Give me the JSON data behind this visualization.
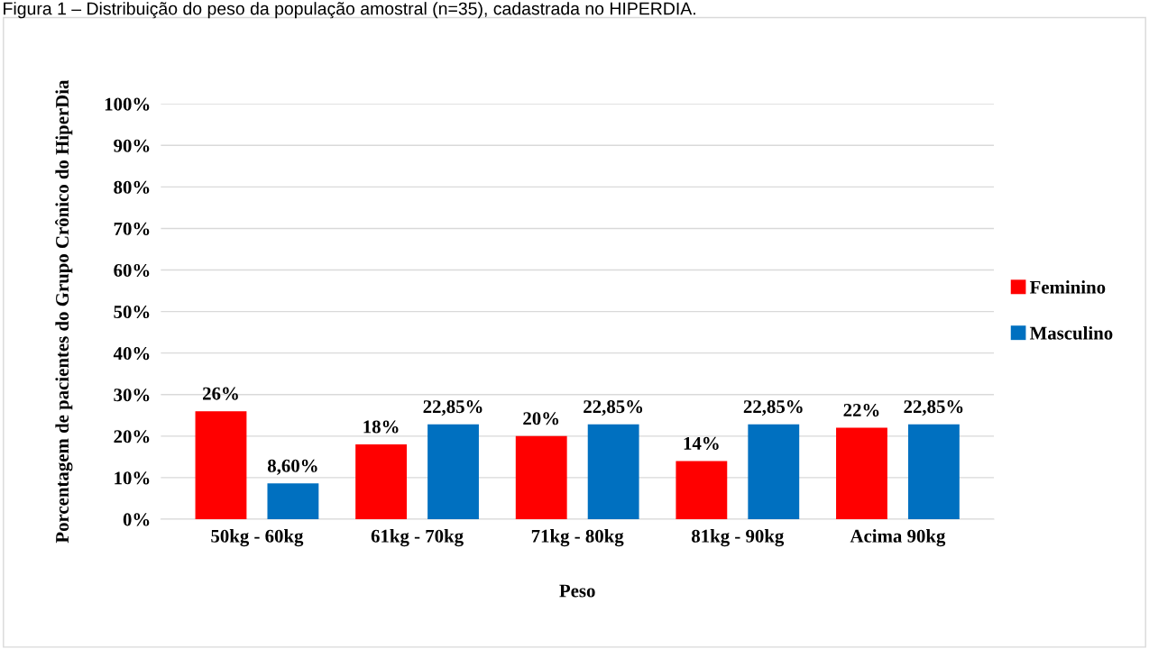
{
  "chart_data": {
    "type": "bar",
    "title": "Figura 1 – Distribuição do peso da população amostral (n=35), cadastrada no HIPERDIA.",
    "xlabel": "Peso",
    "ylabel": "Porcentagem de pacientes do Grupo Crônico do HiperDia",
    "categories": [
      "50kg - 60kg",
      "61kg - 70kg",
      "71kg - 80kg",
      "81kg - 90kg",
      "Acima 90kg"
    ],
    "series": [
      {
        "name": "Feminino",
        "color": "#ff0000",
        "values": [
          26,
          18,
          20,
          14,
          22
        ],
        "value_labels": [
          "26%",
          "18%",
          "20%",
          "14%",
          "22%"
        ]
      },
      {
        "name": "Masculino",
        "color": "#0070c0",
        "values": [
          8.6,
          22.85,
          22.85,
          22.85,
          22.85
        ],
        "value_labels": [
          "8,60%",
          "22,85%",
          "22,85%",
          "22,85%",
          "22,85%"
        ]
      }
    ],
    "ylim": [
      0,
      100
    ],
    "yticks": [
      {
        "value": 0,
        "label": "0%"
      },
      {
        "value": 10,
        "label": "10%"
      },
      {
        "value": 20,
        "label": "20%"
      },
      {
        "value": 30,
        "label": "30%"
      },
      {
        "value": 40,
        "label": "40%"
      },
      {
        "value": 50,
        "label": "50%"
      },
      {
        "value": 60,
        "label": "60%"
      },
      {
        "value": 70,
        "label": "70%"
      },
      {
        "value": 80,
        "label": "80%"
      },
      {
        "value": 90,
        "label": "90%"
      },
      {
        "value": 100,
        "label": "100%"
      }
    ],
    "grid": "y",
    "legend": "right"
  }
}
